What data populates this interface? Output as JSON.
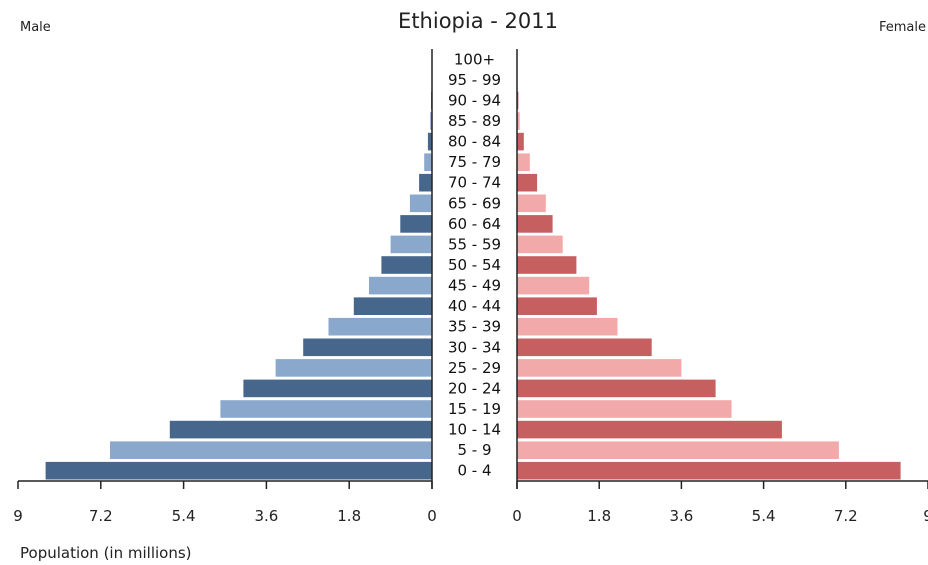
{
  "chart_data": {
    "type": "bar",
    "title": "Ethiopia - 2011",
    "left_label": "Male",
    "right_label": "Female",
    "xlabel": "Population (in millions)",
    "xlim": [
      0,
      9
    ],
    "x_ticks_left": [
      "9",
      "7.2",
      "5.4",
      "3.6",
      "1.8",
      "0"
    ],
    "x_ticks_right": [
      "0",
      "1.8",
      "3.6",
      "5.4",
      "7.2",
      "9"
    ],
    "categories": [
      "100+",
      "95 - 99",
      "90 - 94",
      "85 - 89",
      "80 - 84",
      "75 - 79",
      "70 - 74",
      "65 - 69",
      "60 - 64",
      "55 - 59",
      "50 - 54",
      "45 - 49",
      "40 - 44",
      "35 - 39",
      "30 - 34",
      "25 - 29",
      "20 - 24",
      "15 - 19",
      "10 - 14",
      "5 - 9",
      "0 - 4"
    ],
    "series": [
      {
        "name": "Male",
        "values": [
          0.01,
          0.01,
          0.02,
          0.04,
          0.09,
          0.17,
          0.28,
          0.48,
          0.69,
          0.9,
          1.1,
          1.37,
          1.7,
          2.25,
          2.8,
          3.4,
          4.1,
          4.6,
          5.7,
          7.0,
          8.4
        ]
      },
      {
        "name": "Female",
        "values": [
          0.01,
          0.01,
          0.03,
          0.06,
          0.15,
          0.28,
          0.44,
          0.63,
          0.78,
          1.0,
          1.3,
          1.58,
          1.75,
          2.2,
          2.95,
          3.6,
          4.35,
          4.7,
          5.8,
          7.05,
          8.4
        ]
      }
    ],
    "colors": {
      "male_dark": "#47668c",
      "male_light": "#8aa8cc",
      "female_dark": "#c65f5f",
      "female_light": "#f2a9a9",
      "axis": "#222222"
    },
    "grid": false
  }
}
